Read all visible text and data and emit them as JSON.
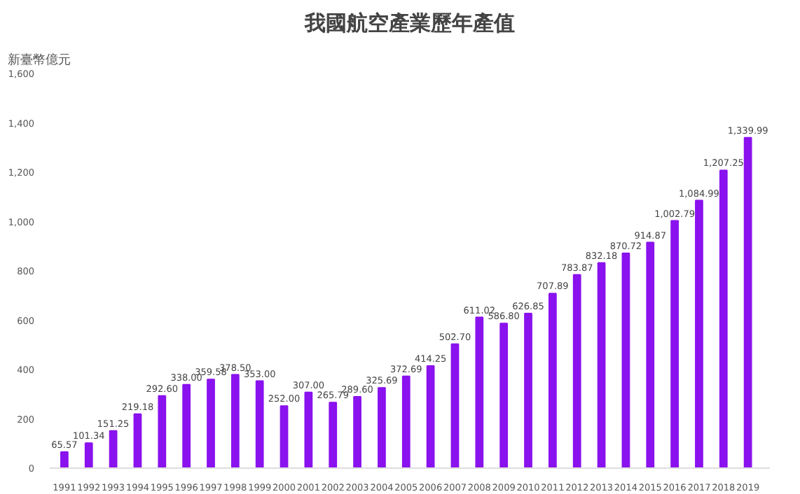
{
  "chart_data": {
    "type": "bar",
    "title": "我國航空產業歷年產值",
    "ylabel": "新臺幣億元",
    "categories": [
      "1991",
      "1992",
      "1993",
      "1994",
      "1995",
      "1996",
      "1997",
      "1998",
      "1999",
      "2000",
      "2001",
      "2002",
      "2003",
      "2004",
      "2005",
      "2006",
      "2007",
      "2008",
      "2009",
      "2010",
      "2011",
      "2012",
      "2013",
      "2014",
      "2015",
      "2016",
      "2017",
      "2018",
      "2019"
    ],
    "values": [
      65.57,
      101.34,
      151.25,
      219.18,
      292.6,
      338,
      359.58,
      378.5,
      353,
      252,
      307,
      265.79,
      289.6,
      325.69,
      372.69,
      414.25,
      502.7,
      611.02,
      586.8,
      626.85,
      707.89,
      783.87,
      832.18,
      870.72,
      914.87,
      1002.79,
      1084.99,
      1207.25,
      1339.99
    ],
    "value_labels": [
      "65.57",
      "101.34",
      "151.25",
      "219.18",
      "292.60",
      "338.00",
      "359.58",
      "378.50",
      "353.00",
      "252.00",
      "307.00",
      "265.79",
      "289.60",
      "325.69",
      "372.69",
      "414.25",
      "502.70",
      "611.02",
      "586.80",
      "626.85",
      "707.89",
      "783.87",
      "832.18",
      "870.72",
      "914.87",
      "1,002.79",
      "1,084.99",
      "1,207.25",
      "1,339.99"
    ],
    "color": "#8a12ee",
    "ylim": [
      0,
      1600
    ],
    "yticks": [
      {
        "value": 0,
        "label": "0"
      },
      {
        "value": 200,
        "label": "200"
      },
      {
        "value": 400,
        "label": "400"
      },
      {
        "value": 600,
        "label": "600"
      },
      {
        "value": 800,
        "label": "800"
      },
      {
        "value": 1000,
        "label": "1,000"
      },
      {
        "value": 1200,
        "label": "1,200"
      },
      {
        "value": 1400,
        "label": "1,400"
      },
      {
        "value": 1600,
        "label": "1,600"
      }
    ],
    "grid": false
  }
}
